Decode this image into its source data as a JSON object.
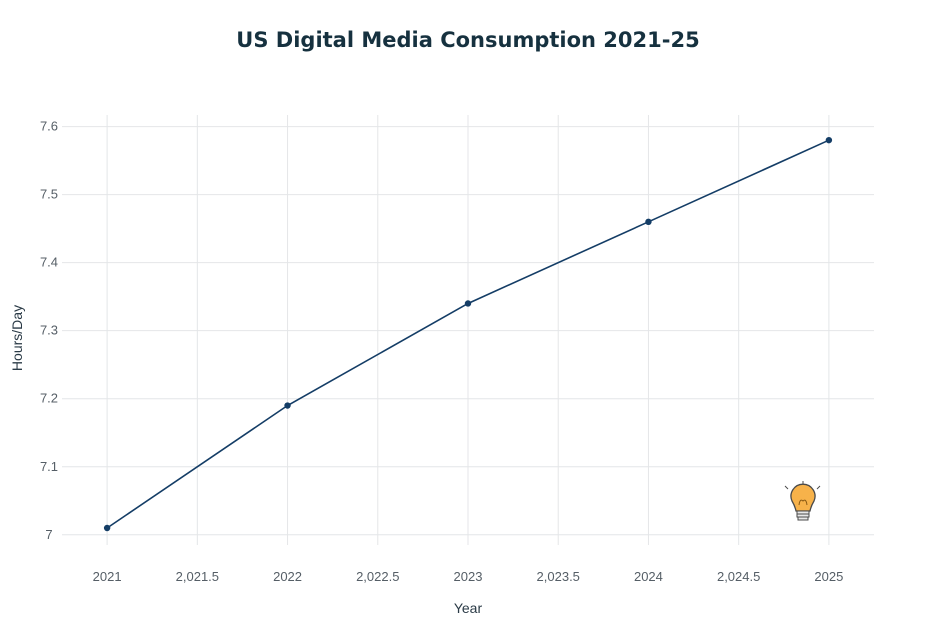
{
  "chart_data": {
    "type": "line",
    "title": "US Digital Media Consumption 2021-25",
    "xlabel": "Year",
    "ylabel": "Hours/Day",
    "x": [
      2021,
      2022,
      2023,
      2024,
      2025
    ],
    "series": [
      {
        "name": "Hours/Day",
        "values": [
          7.01,
          7.19,
          7.34,
          7.46,
          7.58
        ],
        "color": "#143d66"
      }
    ],
    "xlim": [
      2020.75,
      2025.25
    ],
    "ylim": [
      6.985,
      7.617
    ],
    "xticks": [
      2021,
      2021.5,
      2022,
      2022.5,
      2023,
      2023.5,
      2024,
      2024.5,
      2025
    ],
    "xtick_labels": [
      "2021",
      "2,021.5",
      "2022",
      "2,022.5",
      "2023",
      "2,023.5",
      "2024",
      "2,024.5",
      "2025"
    ],
    "yticks": [
      7,
      7.1,
      7.2,
      7.3,
      7.4,
      7.5,
      7.6
    ],
    "ytick_labels": [
      "7",
      "7.1",
      "7.2",
      "7.3",
      "7.4",
      "7.5",
      "7.6"
    ],
    "grid": true,
    "legend": "none"
  },
  "icons": {
    "corner": "lightbulb-icon"
  }
}
